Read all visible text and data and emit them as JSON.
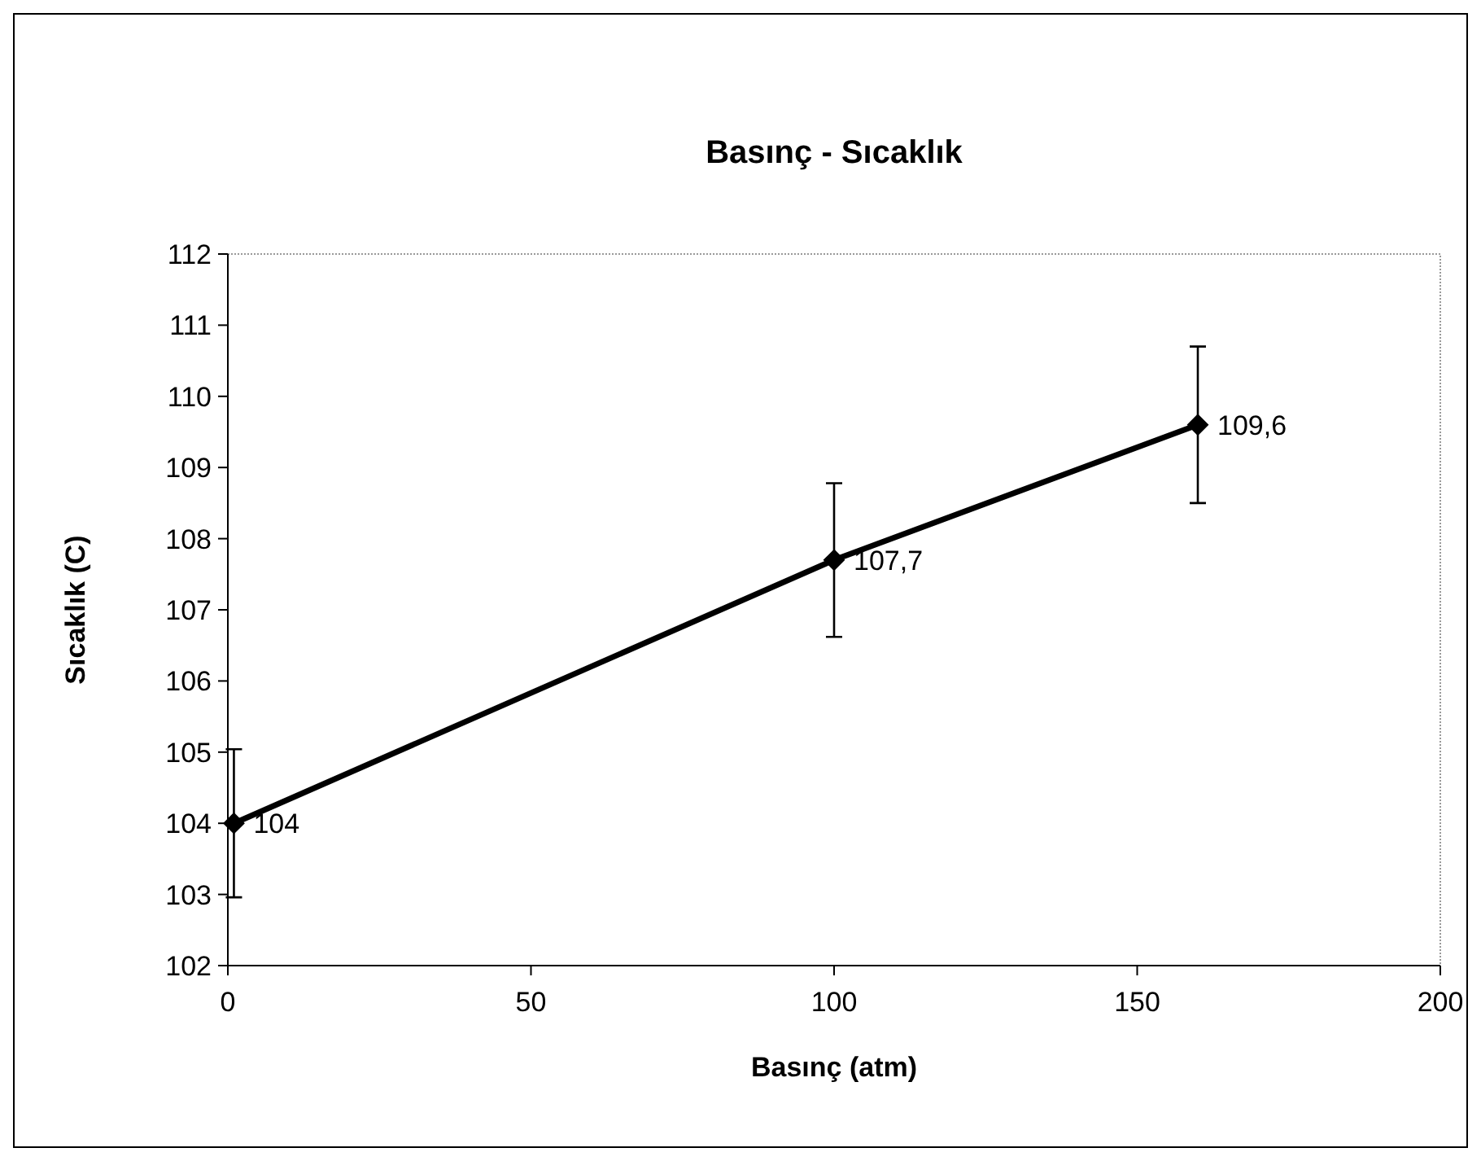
{
  "chart_data": {
    "type": "line",
    "title": "Basınç - Sıcaklık",
    "xlabel": "Basınç (atm)",
    "ylabel": "Sıcaklık (C)",
    "x": [
      1,
      100,
      160
    ],
    "series": [
      {
        "color": "#000000",
        "values": [
          104,
          107.7,
          109.6
        ],
        "errors": [
          1.04,
          1.08,
          1.1
        ],
        "value_labels": [
          "104",
          "107,7",
          "109,6"
        ]
      }
    ],
    "xlim": [
      0,
      200
    ],
    "xticks": [
      0,
      50,
      100,
      150,
      200
    ],
    "ylim": [
      102,
      112
    ],
    "yticks": [
      102,
      103,
      104,
      105,
      106,
      107,
      108,
      109,
      110,
      111,
      112
    ],
    "grid": false,
    "marker": "diamond",
    "line_style": "solid"
  }
}
